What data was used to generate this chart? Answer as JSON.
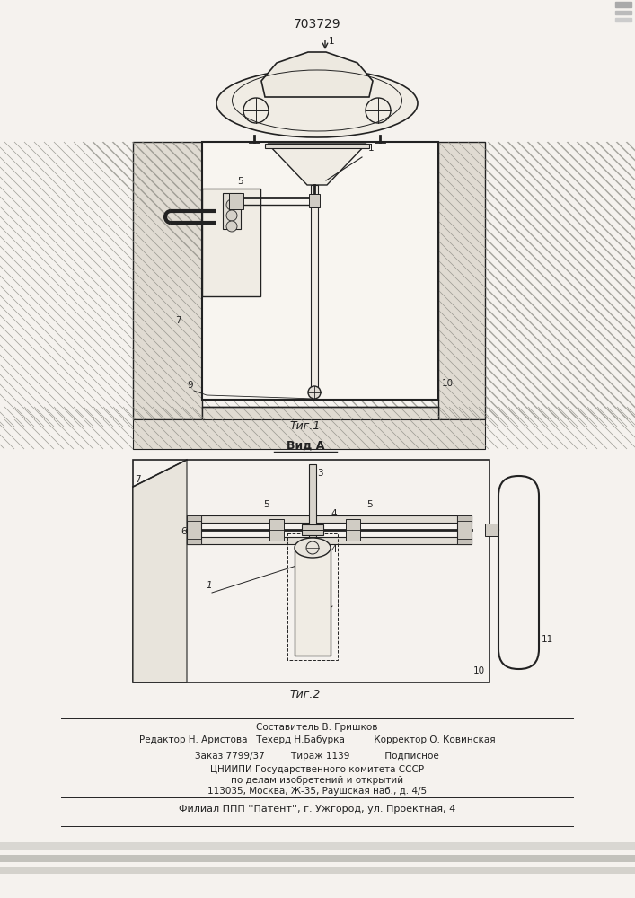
{
  "patent_number": "703729",
  "fig1_caption": "Τиг.1",
  "fig2_caption": "Τиг.2",
  "vid_a_label": "Вид A",
  "footer_line0": "Составитель В. Гришков",
  "footer_line1": "Редактор Н. Аристова   Техерд Н.Бабурка          Корректор О. Ковинская",
  "footer_line2": "Заказ 7799/37         Тираж 1139            Подписное",
  "footer_line3": "ЦНИИПИ Государственного комитета СССР",
  "footer_line4": "по делам изобретений и открытий",
  "footer_line5": "113035, Москва, Ж-35, Раушская наб., д. 4/5",
  "footer_line6": "Филиал ППП ''Патент'', г. Ужгород, ул. Проектная, 4",
  "bg_color": "#f5f2ee",
  "line_color": "#222222",
  "ground_color": "#e0dbd2",
  "hatch_color": "#888880"
}
